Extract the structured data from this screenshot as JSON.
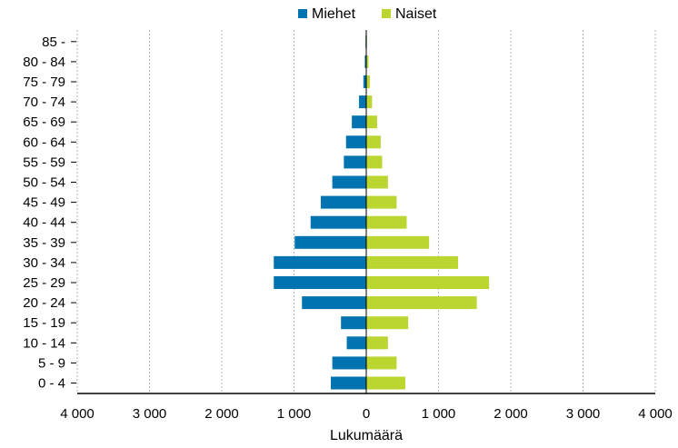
{
  "chart_data": {
    "type": "bar",
    "orientation": "horizontal",
    "layout": "population-pyramid",
    "categories": [
      "0 - 4",
      "5 - 9",
      "10 - 14",
      "15 - 19",
      "20 - 24",
      "25 - 29",
      "30 - 34",
      "35 - 39",
      "40 - 44",
      "45 - 49",
      "50 - 54",
      "55 - 59",
      "60 - 64",
      "65 - 69",
      "70 - 74",
      "75 - 79",
      "80 - 84",
      "85 -"
    ],
    "series": [
      {
        "name": "Miehet",
        "color": "#0073b0",
        "side": "left",
        "values": [
          490,
          470,
          270,
          350,
          890,
          1280,
          1280,
          990,
          770,
          630,
          470,
          310,
          280,
          200,
          100,
          40,
          20,
          10
        ]
      },
      {
        "name": "Naiset",
        "color": "#bbd531",
        "side": "right",
        "values": [
          540,
          420,
          300,
          580,
          1530,
          1700,
          1270,
          870,
          560,
          420,
          300,
          220,
          200,
          150,
          80,
          50,
          30,
          10
        ]
      }
    ],
    "xlabel": "Lukumäärä",
    "ylabel": "",
    "xlim": [
      -4000,
      4000
    ],
    "xticks": [
      -4000,
      -3000,
      -2000,
      -1000,
      0,
      1000,
      2000,
      3000,
      4000
    ],
    "xtick_labels": [
      "4 000",
      "3 000",
      "2 000",
      "1 000",
      "0",
      "1 000",
      "2 000",
      "3 000",
      "4 000"
    ],
    "grid": "vertical-dashed",
    "legend_position": "top-center"
  }
}
